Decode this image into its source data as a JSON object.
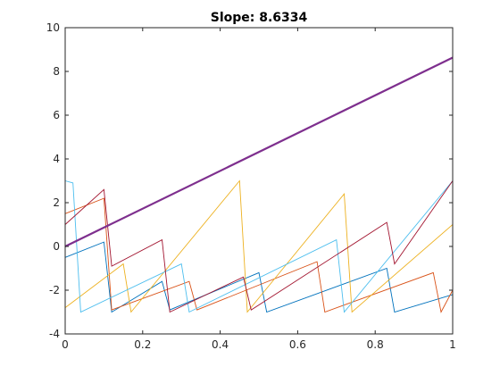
{
  "chart_data": {
    "type": "line",
    "title": "Slope: 8.6334",
    "xlabel": "",
    "ylabel": "",
    "xlim": [
      0,
      1
    ],
    "ylim": [
      -4,
      10
    ],
    "x_ticks": [
      "0",
      "0.2",
      "0.4",
      "0.6",
      "0.8",
      "1"
    ],
    "y_ticks": [
      "-4",
      "-2",
      "0",
      "2",
      "4",
      "6",
      "8",
      "10"
    ],
    "grid": false,
    "legend": "none",
    "fit_line": {
      "x": [
        0,
        1
      ],
      "y": [
        0.0,
        8.6334
      ],
      "color": "#7E2F8E"
    },
    "series": [
      {
        "color": "#0072BD",
        "x": [
          0,
          0.1,
          0.12,
          0.25,
          0.27,
          0.5,
          0.52,
          0.83,
          0.85,
          1.0
        ],
        "y": [
          -0.5,
          0.2,
          -3.0,
          -1.6,
          -2.9,
          -1.2,
          -3.0,
          -1.0,
          -3.0,
          -2.2
        ]
      },
      {
        "color": "#D95319",
        "x": [
          0,
          0.1,
          0.12,
          0.32,
          0.34,
          0.65,
          0.67,
          0.95,
          0.97,
          1.0
        ],
        "y": [
          1.5,
          2.2,
          -2.9,
          -1.6,
          -2.9,
          -0.7,
          -3.0,
          -1.2,
          -3.0,
          -2.0
        ]
      },
      {
        "color": "#EDB120",
        "x": [
          0,
          0.15,
          0.17,
          0.45,
          0.47,
          0.72,
          0.74,
          1.0
        ],
        "y": [
          -2.8,
          -0.8,
          -3.0,
          3.0,
          -3.0,
          2.4,
          -3.0,
          1.0
        ]
      },
      {
        "color": "#4DBEEE",
        "x": [
          0,
          0.02,
          0.04,
          0.3,
          0.32,
          0.7,
          0.72,
          1.0
        ],
        "y": [
          3.0,
          2.9,
          -3.0,
          -0.8,
          -3.0,
          0.3,
          -3.0,
          3.0
        ]
      },
      {
        "color": "#A2142F",
        "x": [
          0,
          0.1,
          0.12,
          0.25,
          0.27,
          0.46,
          0.48,
          0.83,
          0.85,
          1.0
        ],
        "y": [
          1.0,
          2.6,
          -0.9,
          0.3,
          -3.0,
          -1.4,
          -2.9,
          1.1,
          -0.8,
          3.0
        ]
      }
    ]
  }
}
